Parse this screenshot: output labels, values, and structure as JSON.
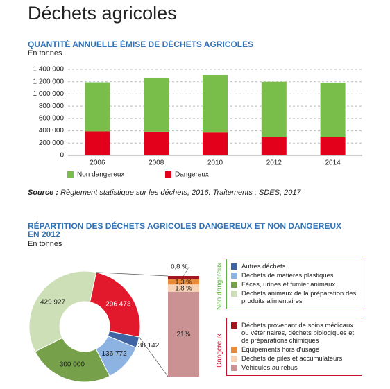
{
  "heading": "Déchets agricoles",
  "chart_data": [
    {
      "type": "stacked_bar",
      "title": "QUANTITÉ ANNUELLE ÉMISE DE DÉCHETS AGRICOLES",
      "subtitle": "En tonnes",
      "categories": [
        "2006",
        "2008",
        "2010",
        "2012",
        "2014"
      ],
      "series": [
        {
          "name": "Non dangereux",
          "color": "#79be4a",
          "values": [
            800000,
            880000,
            940000,
            900000,
            885000
          ]
        },
        {
          "name": "Dangereux",
          "color": "#e2001a",
          "values": [
            390000,
            385000,
            370000,
            300000,
            295000
          ]
        }
      ],
      "ylim": [
        0,
        1400000
      ],
      "yticks": [
        0,
        {
          "value": 200000,
          "label": "200 000"
        },
        {
          "value": 400000,
          "label": "400 000"
        },
        {
          "value": 600000,
          "label": "600 000"
        },
        {
          "value": 800000,
          "label": "800 000"
        },
        {
          "value": 1000000,
          "label": "1 000 000"
        },
        {
          "value": 1200000,
          "label": "1 200 000"
        },
        {
          "value": 1400000,
          "label": "1 400 000"
        }
      ],
      "grid": true,
      "source_label": "Source :",
      "source": "Règlement statistique sur les déchets, 2016. Traitements : SDES, 2017"
    },
    {
      "type": "donut",
      "title": "RÉPARTITION DES DÉCHETS AGRICOLES DANGEREUX ET NON DANGEREUX\nEN 2012",
      "subtitle": "En tonnes",
      "categories": [
        "Dangereux",
        "Autres déchets",
        "Déchets de matières plastiques",
        "Fèces, urines et fumier animaux",
        "Déchets animaux de la préparation des produits alimentaires"
      ],
      "values": [
        296473,
        38142,
        136772,
        300000,
        429927
      ],
      "value_labels": [
        "296 473",
        "38 142",
        "136 772",
        "300 000",
        "429 927"
      ],
      "colors": [
        "#e2192c",
        "#3e64a3",
        "#8db3e2",
        "#76a04a",
        "#cddfb7"
      ],
      "non_dangerous_label": "Non dangereux",
      "non_dangerous_color": "#5fb346",
      "dangerous_color": "#c8102e",
      "breakdown": {
        "categories": [
          "Déchets provenant de soins médicaux ou vétérinaires, déchets biologiques et de préparations chimiques",
          "Équipements hors d'usage",
          "Déchets de piles et accumulateurs",
          "Véhicules au rebus"
        ],
        "values": [
          0.8,
          1.3,
          1.8,
          21
        ],
        "value_labels": [
          "0,8 %",
          "1,3 %",
          "1,8 %",
          "21%"
        ],
        "colors": [
          "#a3151c",
          "#ea8a3b",
          "#f7d2b4",
          "#cb9293"
        ]
      }
    }
  ]
}
